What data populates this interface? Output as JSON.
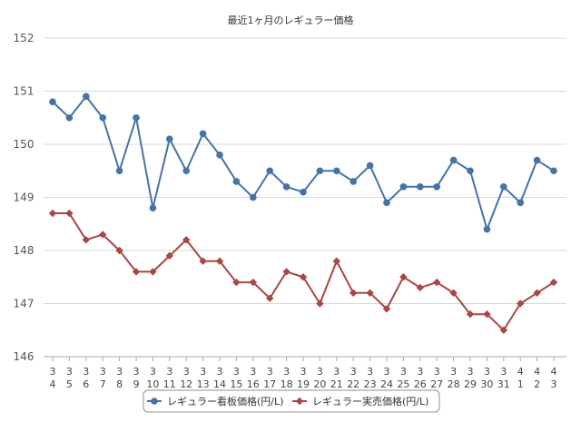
{
  "chart_data": {
    "type": "line",
    "title": "最近1ヶ月のレギュラー価格",
    "xlabel": "",
    "ylabel": "",
    "ylim": [
      146,
      152
    ],
    "yticks": [
      146,
      147,
      148,
      149,
      150,
      151,
      152
    ],
    "grid": true,
    "legend_position": "bottom",
    "categories": [
      [
        "3",
        "4"
      ],
      [
        "3",
        "5"
      ],
      [
        "3",
        "6"
      ],
      [
        "3",
        "7"
      ],
      [
        "3",
        "8"
      ],
      [
        "3",
        "9"
      ],
      [
        "3",
        "10"
      ],
      [
        "3",
        "11"
      ],
      [
        "3",
        "12"
      ],
      [
        "3",
        "13"
      ],
      [
        "3",
        "14"
      ],
      [
        "3",
        "15"
      ],
      [
        "3",
        "16"
      ],
      [
        "3",
        "17"
      ],
      [
        "3",
        "18"
      ],
      [
        "3",
        "19"
      ],
      [
        "3",
        "20"
      ],
      [
        "3",
        "21"
      ],
      [
        "3",
        "22"
      ],
      [
        "3",
        "23"
      ],
      [
        "3",
        "24"
      ],
      [
        "3",
        "25"
      ],
      [
        "3",
        "26"
      ],
      [
        "3",
        "27"
      ],
      [
        "3",
        "28"
      ],
      [
        "3",
        "29"
      ],
      [
        "3",
        "30"
      ],
      [
        "3",
        "31"
      ],
      [
        "4",
        "1"
      ],
      [
        "4",
        "2"
      ],
      [
        "4",
        "3"
      ]
    ],
    "series": [
      {
        "name": "レギュラー看板価格(円/L)",
        "color": "#4572a7",
        "marker": "circle",
        "values": [
          150.8,
          150.5,
          150.9,
          150.5,
          149.5,
          150.5,
          148.8,
          150.1,
          149.5,
          150.2,
          149.8,
          149.3,
          149.0,
          149.5,
          149.2,
          149.1,
          149.5,
          149.5,
          149.3,
          149.6,
          148.9,
          149.2,
          149.2,
          149.2,
          149.7,
          149.5,
          148.4,
          149.2,
          148.9,
          149.7,
          149.5
        ]
      },
      {
        "name": "レギュラー実売価格(円/L)",
        "color": "#aa4643",
        "marker": "diamond",
        "values": [
          148.7,
          148.7,
          148.2,
          148.3,
          148.0,
          147.6,
          147.6,
          147.9,
          148.2,
          147.8,
          147.8,
          147.4,
          147.4,
          147.1,
          147.6,
          147.5,
          147.0,
          147.8,
          147.2,
          147.2,
          146.9,
          147.5,
          147.3,
          147.4,
          147.2,
          146.8,
          146.8,
          146.5,
          147.0,
          147.2,
          147.4
        ]
      }
    ]
  }
}
